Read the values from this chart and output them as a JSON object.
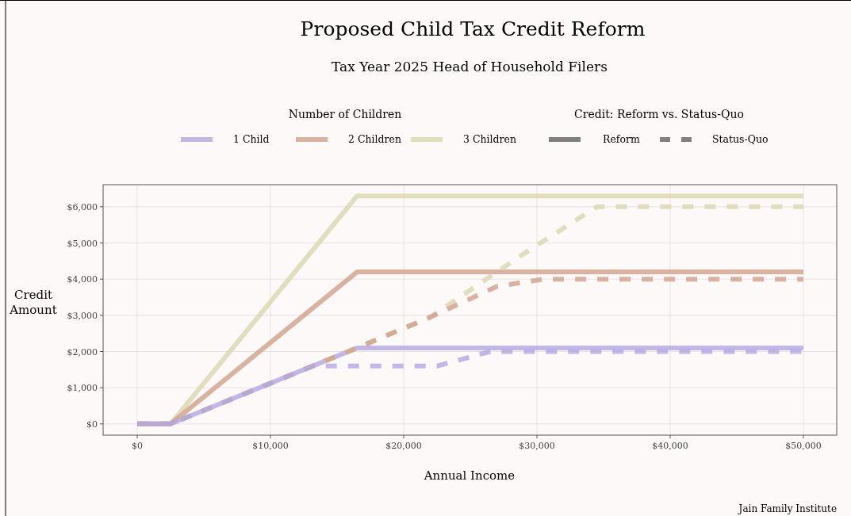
{
  "chart_data": {
    "type": "line",
    "title": "Proposed Child Tax Credit Reform",
    "subtitle": "Tax Year 2025 Head of Household Filers",
    "xlabel": "Annual Income",
    "ylabel": "Credit Amount",
    "legend_title": "Number of Children",
    "legend": "top",
    "grid": true,
    "annotations": [
      "Credit: Reform vs. Status-Quo",
      "Reform",
      "Status-Quo",
      "Jain Family Institute"
    ],
    "xlim": [
      -2560,
      52500
    ],
    "ylim": [
      -310,
      6610
    ],
    "xticks": [
      {
        "value": 0,
        "label": "$0"
      },
      {
        "value": 10000,
        "label": "$10,000"
      },
      {
        "value": 20000,
        "label": "$20,000"
      },
      {
        "value": 30000,
        "label": "$30,000"
      },
      {
        "value": 40000,
        "label": "$40,000"
      },
      {
        "value": 50000,
        "label": "$50,000"
      }
    ],
    "yticks": [
      {
        "value": 0,
        "label": "$0"
      },
      {
        "value": 1000,
        "label": "$1,000"
      },
      {
        "value": 2000,
        "label": "$2,000"
      },
      {
        "value": 3000,
        "label": "$3,000"
      },
      {
        "value": 4000,
        "label": "$4,000"
      },
      {
        "value": 5000,
        "label": "$5,000"
      },
      {
        "value": 6000,
        "label": "$6,000"
      }
    ],
    "series": [
      {
        "name": "3 Children",
        "color": "#dcd6b0",
        "line_style": "solid",
        "x": [
          0,
          2500,
          16500,
          50000
        ],
        "values": [
          0,
          0,
          6300,
          6300
        ]
      },
      {
        "name": "2 Children",
        "color": "#d1a08b",
        "line_style": "solid",
        "x": [
          0,
          2500,
          16500,
          50000
        ],
        "values": [
          0,
          0,
          4200,
          4200
        ]
      },
      {
        "name": "1 Child",
        "color": "#b3a7e3",
        "line_style": "solid",
        "x": [
          0,
          2500,
          16500,
          50000
        ],
        "values": [
          0,
          0,
          2100,
          2100
        ]
      },
      {
        "color": "#dcd6b0",
        "line_style": "dashed",
        "x": [
          0,
          2500,
          16500,
          22000,
          29000,
          34500,
          50000
        ],
        "values": [
          0,
          0,
          2100,
          2950,
          4700,
          6000,
          6000
        ]
      },
      {
        "color": "#d1a08b",
        "line_style": "dashed",
        "x": [
          0,
          2500,
          16500,
          22000,
          27000,
          30500,
          50000
        ],
        "values": [
          0,
          0,
          2100,
          2950,
          3800,
          4000,
          4000
        ]
      },
      {
        "color": "#b3a7e3",
        "line_style": "dashed",
        "x": [
          0,
          2500,
          13200,
          22500,
          26500,
          50000
        ],
        "values": [
          0,
          0,
          1600,
          1600,
          2000,
          2000
        ]
      }
    ]
  }
}
